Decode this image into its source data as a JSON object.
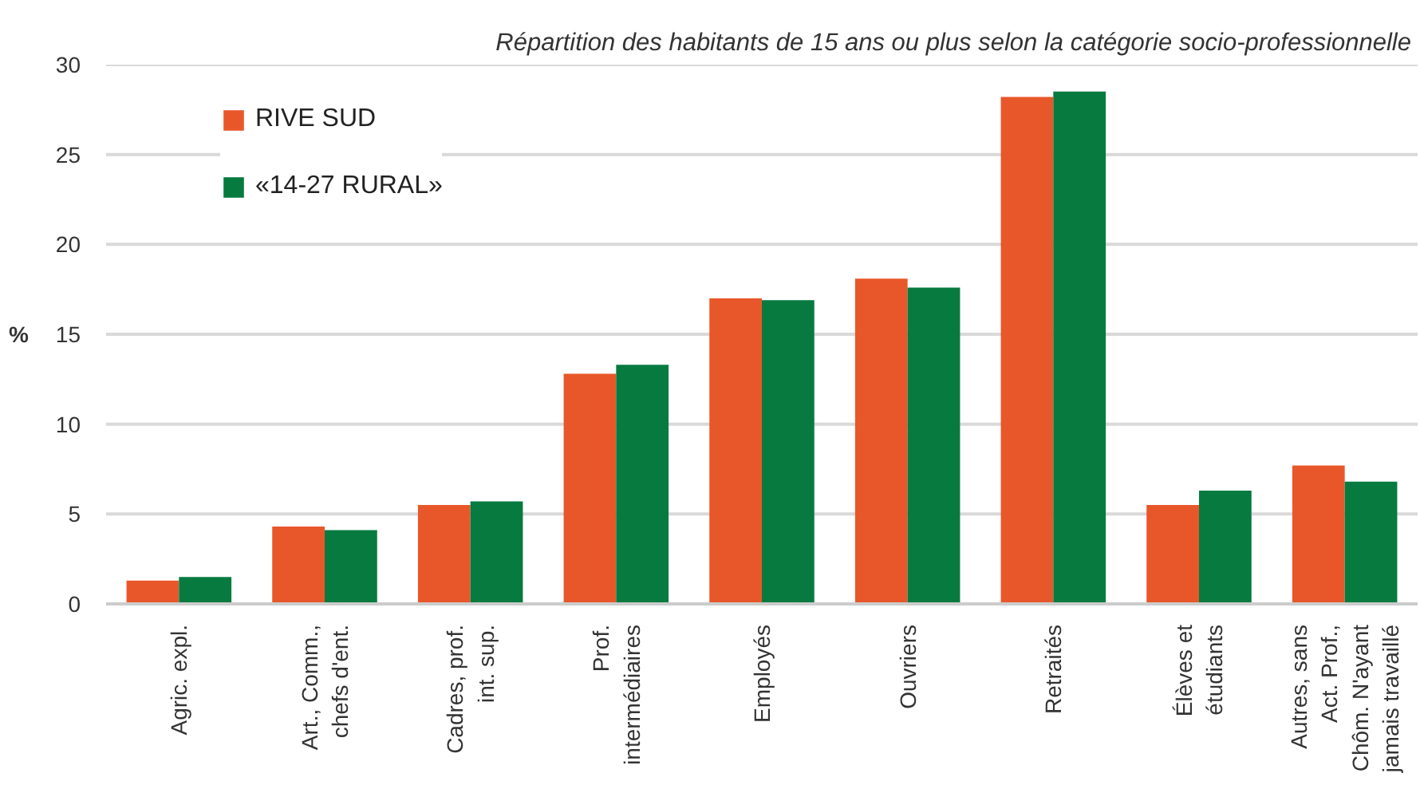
{
  "chart_data": {
    "type": "bar",
    "title": "Répartition des habitants de 15 ans ou plus selon la catégorie socio-professionnelle",
    "ylabel": "%",
    "categories": [
      "Agric. expl.",
      "Art., Comm.,\nchefs d'ent.",
      "Cadres, prof.\nint. sup.",
      "Prof.\nintermédiaires",
      "Employés",
      "Ouvriers",
      "Retraités",
      "Élèves et\nétudiants",
      "Autres, sans\nAct. Prof.,\nChôm. N'ayant\njamais travaillé"
    ],
    "series": [
      {
        "name": "RIVE SUD",
        "color": "#e8572a",
        "values": [
          1.3,
          4.3,
          5.5,
          12.8,
          17.0,
          18.1,
          28.2,
          5.5,
          7.7
        ]
      },
      {
        "name": "«14-27 RURAL»",
        "color": "#077a40",
        "values": [
          1.5,
          4.1,
          5.7,
          13.3,
          16.9,
          17.6,
          28.5,
          6.3,
          6.8
        ]
      }
    ],
    "ylim": [
      0,
      30
    ],
    "yticks": [
      0,
      5,
      10,
      15,
      20,
      25,
      30
    ],
    "grid": "y",
    "legend": "top left"
  }
}
